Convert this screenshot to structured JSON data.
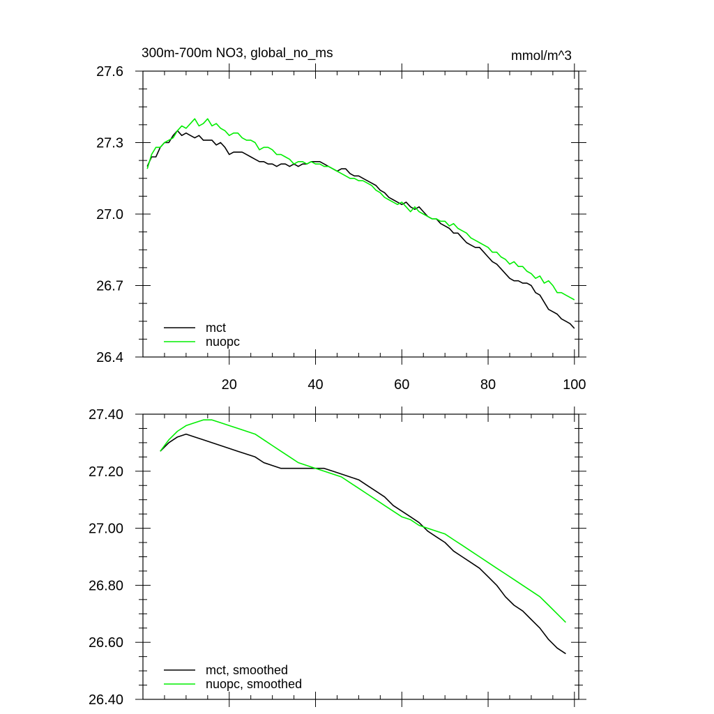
{
  "header": {
    "title": "300m-700m NO3, global_no_ms",
    "units": "mmol/m^3"
  },
  "colors": {
    "mct": "#000000",
    "nuopc": "#00ee00"
  },
  "chart_data": [
    {
      "type": "line",
      "title": "300m-700m NO3, global_no_ms",
      "units_label": "mmol/m^3",
      "xlim": [
        0,
        101
      ],
      "ylim": [
        26.4,
        27.6
      ],
      "x_ticks": [
        20,
        40,
        60,
        80,
        100
      ],
      "y_ticks": [
        26.4,
        26.7,
        27.0,
        27.3,
        27.6
      ],
      "y_tick_labels": [
        "26.4",
        "26.7",
        "27.0",
        "27.3",
        "27.6"
      ],
      "legend_position": "bottom-left",
      "series": [
        {
          "name": "mct",
          "color": "#000000",
          "x": [
            1,
            2,
            3,
            4,
            5,
            6,
            7,
            8,
            9,
            10,
            11,
            12,
            13,
            14,
            15,
            16,
            17,
            18,
            19,
            20,
            21,
            22,
            23,
            24,
            25,
            26,
            27,
            28,
            29,
            30,
            31,
            32,
            33,
            34,
            35,
            36,
            37,
            38,
            39,
            40,
            41,
            42,
            43,
            44,
            45,
            46,
            47,
            48,
            49,
            50,
            51,
            52,
            53,
            54,
            55,
            56,
            57,
            58,
            59,
            60,
            61,
            62,
            63,
            64,
            65,
            66,
            67,
            68,
            69,
            70,
            71,
            72,
            73,
            74,
            75,
            76,
            77,
            78,
            79,
            80,
            81,
            82,
            83,
            84,
            85,
            86,
            87,
            88,
            89,
            90,
            91,
            92,
            93,
            94,
            95,
            96,
            97,
            98,
            99,
            100
          ],
          "y": [
            27.2,
            27.24,
            27.24,
            27.28,
            27.3,
            27.3,
            27.33,
            27.35,
            27.33,
            27.34,
            27.33,
            27.32,
            27.33,
            27.31,
            27.31,
            27.31,
            27.29,
            27.3,
            27.28,
            27.25,
            27.26,
            27.26,
            27.26,
            27.25,
            27.24,
            27.23,
            27.22,
            27.22,
            27.21,
            27.21,
            27.2,
            27.21,
            27.21,
            27.2,
            27.21,
            27.2,
            27.21,
            27.21,
            27.22,
            27.22,
            27.22,
            27.21,
            27.2,
            27.19,
            27.18,
            27.19,
            27.19,
            27.17,
            27.16,
            27.16,
            27.15,
            27.14,
            27.13,
            27.12,
            27.1,
            27.09,
            27.07,
            27.06,
            27.05,
            27.04,
            27.05,
            27.03,
            27.02,
            27.03,
            27.01,
            26.99,
            26.98,
            26.98,
            26.96,
            26.95,
            26.94,
            26.92,
            26.92,
            26.9,
            26.88,
            26.87,
            26.86,
            26.86,
            26.84,
            26.82,
            26.8,
            26.79,
            26.77,
            26.75,
            26.73,
            26.72,
            26.72,
            26.71,
            26.71,
            26.7,
            26.67,
            26.66,
            26.63,
            26.6,
            26.59,
            26.58,
            26.56,
            26.55,
            26.54,
            26.52
          ]
        },
        {
          "name": "nuopc",
          "color": "#00ee00",
          "x": [
            1,
            2,
            3,
            4,
            5,
            6,
            7,
            8,
            9,
            10,
            11,
            12,
            13,
            14,
            15,
            16,
            17,
            18,
            19,
            20,
            21,
            22,
            23,
            24,
            25,
            26,
            27,
            28,
            29,
            30,
            31,
            32,
            33,
            34,
            35,
            36,
            37,
            38,
            39,
            40,
            41,
            42,
            43,
            44,
            45,
            46,
            47,
            48,
            49,
            50,
            51,
            52,
            53,
            54,
            55,
            56,
            57,
            58,
            59,
            60,
            61,
            62,
            63,
            64,
            65,
            66,
            67,
            68,
            69,
            70,
            71,
            72,
            73,
            74,
            75,
            76,
            77,
            78,
            79,
            80,
            81,
            82,
            83,
            84,
            85,
            86,
            87,
            88,
            89,
            90,
            91,
            92,
            93,
            94,
            95,
            96,
            97,
            98,
            99,
            100
          ],
          "y": [
            27.19,
            27.25,
            27.28,
            27.28,
            27.3,
            27.31,
            27.32,
            27.35,
            27.37,
            27.36,
            27.38,
            27.4,
            27.37,
            27.38,
            27.4,
            27.37,
            27.38,
            27.36,
            27.35,
            27.33,
            27.34,
            27.34,
            27.32,
            27.31,
            27.31,
            27.3,
            27.27,
            27.28,
            27.28,
            27.27,
            27.25,
            27.25,
            27.24,
            27.23,
            27.21,
            27.22,
            27.22,
            27.21,
            27.22,
            27.21,
            27.21,
            27.2,
            27.2,
            27.19,
            27.18,
            27.17,
            27.16,
            27.15,
            27.15,
            27.14,
            27.14,
            27.13,
            27.12,
            27.1,
            27.09,
            27.07,
            27.06,
            27.05,
            27.04,
            27.05,
            27.03,
            27.01,
            27.03,
            27.01,
            27.0,
            26.99,
            26.98,
            26.98,
            26.97,
            26.97,
            26.95,
            26.96,
            26.94,
            26.93,
            26.92,
            26.9,
            26.89,
            26.88,
            26.87,
            26.86,
            26.84,
            26.84,
            26.82,
            26.81,
            26.79,
            26.8,
            26.78,
            26.78,
            26.76,
            26.75,
            26.73,
            26.74,
            26.71,
            26.72,
            26.7,
            26.67,
            26.67,
            26.66,
            26.65,
            26.64
          ]
        }
      ]
    },
    {
      "type": "line",
      "xlim": [
        0,
        101
      ],
      "ylim": [
        26.4,
        27.4
      ],
      "x_ticks": [
        20,
        40,
        60,
        80,
        100
      ],
      "y_ticks": [
        26.4,
        26.6,
        26.8,
        27.0,
        27.2,
        27.4
      ],
      "y_tick_labels": [
        "26.40",
        "26.60",
        "26.80",
        "27.00",
        "27.20",
        "27.40"
      ],
      "legend_position": "bottom-left",
      "series": [
        {
          "name": "mct, smoothed",
          "color": "#000000",
          "x": [
            4,
            6,
            8,
            10,
            12,
            14,
            16,
            18,
            20,
            22,
            24,
            26,
            28,
            30,
            32,
            34,
            36,
            38,
            40,
            42,
            44,
            46,
            48,
            50,
            52,
            54,
            56,
            58,
            60,
            62,
            64,
            66,
            68,
            70,
            72,
            74,
            76,
            78,
            80,
            82,
            84,
            86,
            88,
            90,
            92,
            94,
            96,
            98
          ],
          "y": [
            27.27,
            27.3,
            27.32,
            27.33,
            27.32,
            27.31,
            27.3,
            27.29,
            27.28,
            27.27,
            27.26,
            27.25,
            27.23,
            27.22,
            27.21,
            27.21,
            27.21,
            27.21,
            27.21,
            27.21,
            27.2,
            27.19,
            27.18,
            27.17,
            27.15,
            27.13,
            27.11,
            27.08,
            27.06,
            27.04,
            27.02,
            26.99,
            26.97,
            26.95,
            26.92,
            26.9,
            26.88,
            26.86,
            26.83,
            26.8,
            26.76,
            26.73,
            26.71,
            26.68,
            26.65,
            26.61,
            26.58,
            26.56
          ]
        },
        {
          "name": "nuopc, smoothed",
          "color": "#00ee00",
          "x": [
            4,
            6,
            8,
            10,
            12,
            14,
            16,
            18,
            20,
            22,
            24,
            26,
            28,
            30,
            32,
            34,
            36,
            38,
            40,
            42,
            44,
            46,
            48,
            50,
            52,
            54,
            56,
            58,
            60,
            62,
            64,
            66,
            68,
            70,
            72,
            74,
            76,
            78,
            80,
            82,
            84,
            86,
            88,
            90,
            92,
            94,
            96,
            98
          ],
          "y": [
            27.27,
            27.31,
            27.34,
            27.36,
            27.37,
            27.38,
            27.38,
            27.37,
            27.36,
            27.35,
            27.34,
            27.33,
            27.31,
            27.29,
            27.27,
            27.25,
            27.23,
            27.22,
            27.21,
            27.2,
            27.19,
            27.18,
            27.16,
            27.14,
            27.12,
            27.1,
            27.08,
            27.06,
            27.04,
            27.03,
            27.01,
            27.0,
            26.99,
            26.98,
            26.96,
            26.94,
            26.92,
            26.9,
            26.88,
            26.86,
            26.84,
            26.82,
            26.8,
            26.78,
            26.76,
            26.73,
            26.7,
            26.67
          ]
        }
      ]
    }
  ]
}
